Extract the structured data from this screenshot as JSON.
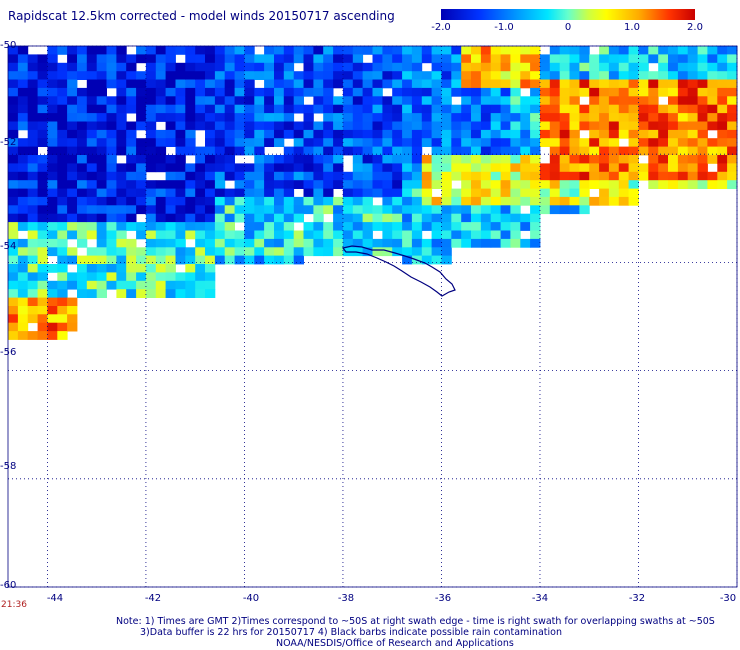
{
  "title": "Rapidscat 12.5km corrected - model winds 20150717 ascending",
  "colorbar": {
    "min": -2.0,
    "max": 2.0,
    "tick_labels": [
      "-2.0",
      "-1.0",
      "0",
      "1.0",
      "2.0"
    ],
    "tick_values": [
      -2.0,
      -1.0,
      0,
      1.0,
      2.0
    ]
  },
  "map": {
    "lon_range": [
      -44.8,
      -30
    ],
    "lat_range": [
      -60,
      -50
    ],
    "lon_tick_labels": [
      "-44",
      "-42",
      "-40",
      "-38",
      "-36",
      "-34",
      "-32",
      "-30"
    ],
    "lon_tick_values": [
      -44,
      -42,
      -40,
      -38,
      -36,
      -34,
      -32,
      -30
    ],
    "lat_tick_labels": [
      "-50",
      "-52",
      "-54",
      "-56",
      "-58",
      "-60"
    ],
    "lat_tick_values": [
      -50,
      -52,
      -54,
      -56,
      -58,
      -60
    ],
    "grid": true,
    "coastline": "South Georgia",
    "time_label": "21:36"
  },
  "chart_data": {
    "type": "heatmap",
    "title": "Rapidscat 12.5km corrected - model winds 20150717 ascending",
    "xlabel": "",
    "ylabel": "",
    "value_range": [
      -2.0,
      2.0
    ],
    "x_ticks": [
      -44,
      -42,
      -40,
      -38,
      -36,
      -34,
      -32,
      -30
    ],
    "y_ticks": [
      -50,
      -52,
      -54,
      -56,
      -58,
      -60
    ],
    "regions": [
      {
        "lon": [
          -44.8,
          -40.5
        ],
        "lat": [
          -53.3,
          -50.0
        ],
        "approx_value": -1.6
      },
      {
        "lon": [
          -44.8,
          -40.5
        ],
        "lat": [
          -54.6,
          -53.3
        ],
        "approx_value": -0.2
      },
      {
        "lon": [
          -44.8,
          -43.3
        ],
        "lat": [
          -55.4,
          -54.6
        ],
        "approx_value": 1.2
      },
      {
        "lon": [
          -40.5,
          -36.8
        ],
        "lat": [
          -52.8,
          -50.0
        ],
        "approx_value": -1.3
      },
      {
        "lon": [
          -40.5,
          -36.8
        ],
        "lat": [
          -53.8,
          -52.8
        ],
        "approx_value": -0.4
      },
      {
        "lon": [
          -36.8,
          -34.5
        ],
        "lat": [
          -52.2,
          -50.0
        ],
        "approx_value": -1.0
      },
      {
        "lon": [
          -35.5,
          -34.0
        ],
        "lat": [
          -50.8,
          -50.0
        ],
        "approx_value": 0.9
      },
      {
        "lon": [
          -36.3,
          -34.0
        ],
        "lat": [
          -53.0,
          -52.0
        ],
        "approx_value": 0.6
      },
      {
        "lon": [
          -34.0,
          -30.0
        ],
        "lat": [
          -52.5,
          -50.6
        ],
        "approx_value": 1.3
      },
      {
        "lon": [
          -34.0,
          -30.0
        ],
        "lat": [
          -53.0,
          -52.5
        ],
        "approx_value": 0.5
      }
    ]
  },
  "notes": [
    "Note: 1) Times are GMT 2)Times correspond to ~50S at right swath edge - time is right swath for overlapping swaths at ~50S",
    "3)Data buffer is 22 hrs for 20150717 4) Black barbs indicate possible rain contamination",
    "NOAA/NESDIS/Office of Research and Applications"
  ]
}
